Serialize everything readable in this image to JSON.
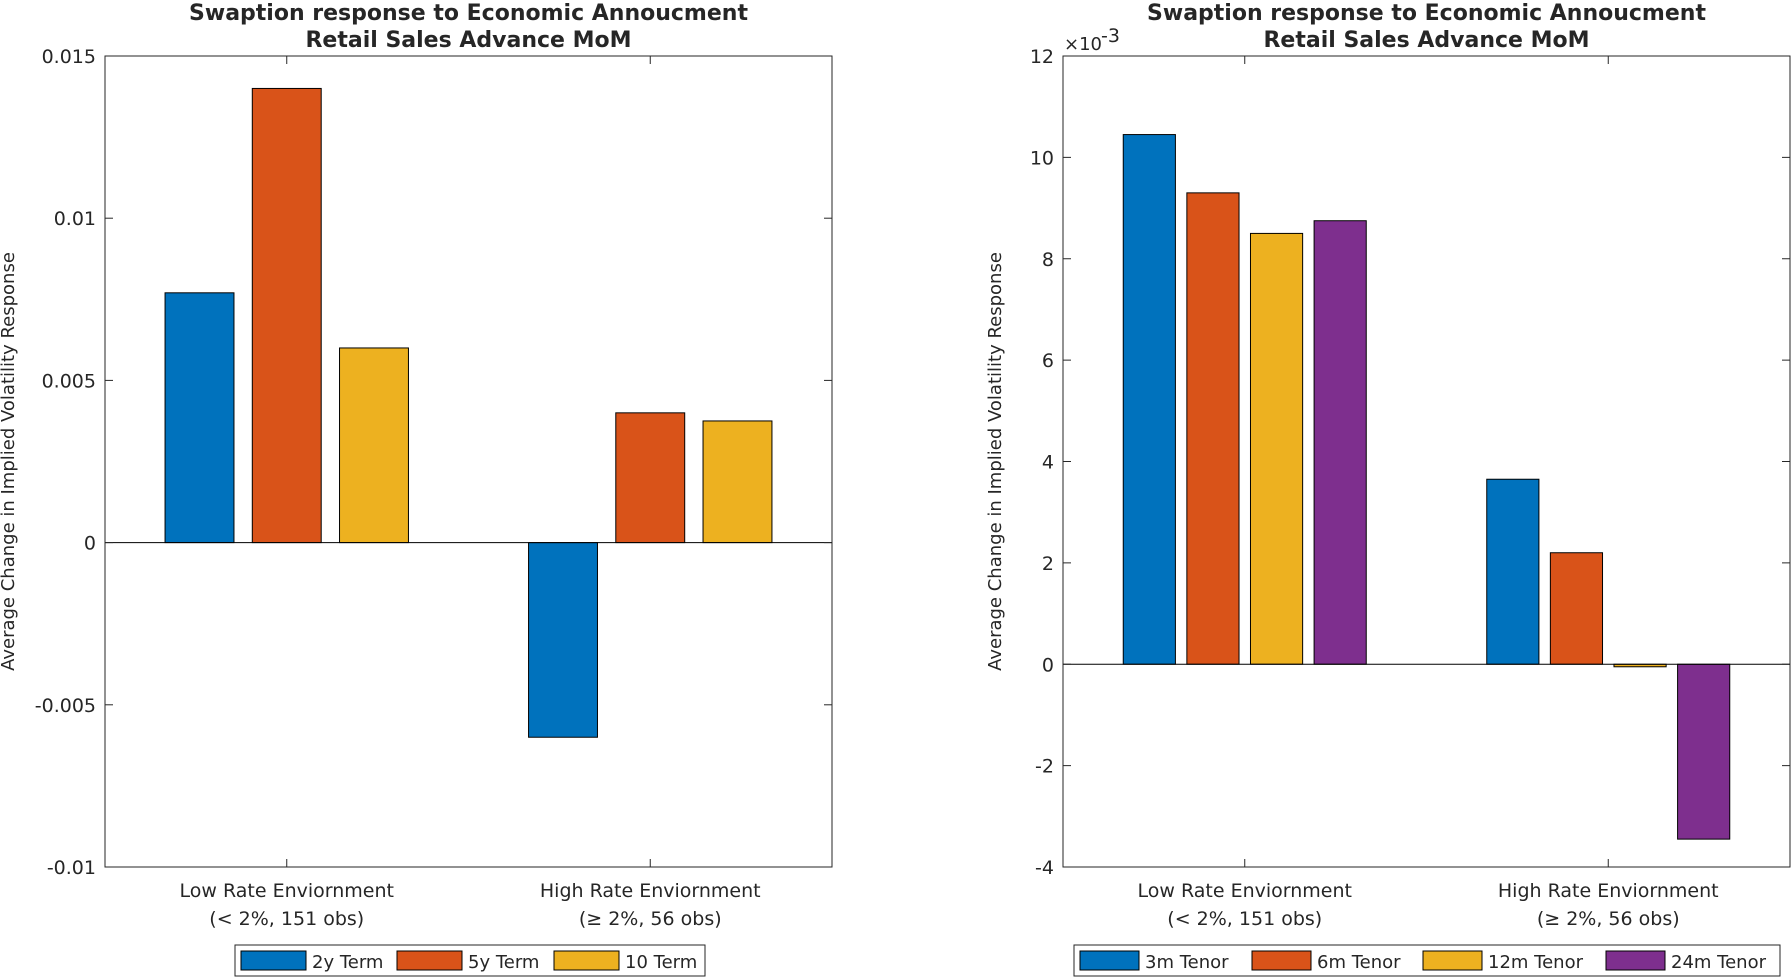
{
  "chart_data": [
    {
      "type": "bar",
      "title": [
        "Swaption response to Economic Annoucment",
        "Retail Sales Advance MoM"
      ],
      "ylabel": "Average Change in Implied Volatility Response",
      "ylim": [
        -0.01,
        0.015
      ],
      "yticks": [
        -0.01,
        -0.005,
        0,
        0.005,
        0.01,
        0.015
      ],
      "ytick_labels": [
        "-0.01",
        "-0.005",
        "0",
        "0.005",
        "0.01",
        "0.015"
      ],
      "categories": [
        [
          "Low Rate Enviornment",
          "(< 2%, 151 obs)"
        ],
        [
          "High Rate Enviornment",
          "(≥ 2%, 56 obs)"
        ]
      ],
      "series": [
        {
          "name": "2y Term",
          "color": "#0072BD",
          "values": [
            0.0077,
            -0.006
          ]
        },
        {
          "name": "5y Term",
          "color": "#D95319",
          "values": [
            0.014,
            0.004
          ]
        },
        {
          "name": "10 Term",
          "color": "#EDB120",
          "values": [
            0.006,
            0.00375
          ]
        }
      ],
      "legend": "bottom",
      "grid": false
    },
    {
      "type": "bar",
      "title": [
        "Swaption response to Economic Annoucment",
        "Retail Sales Advance MoM"
      ],
      "ylabel": "Average Change in Implied Volatility Response",
      "ylim": [
        -0.004,
        0.012
      ],
      "yticks": [
        -0.004,
        -0.002,
        0,
        0.002,
        0.004,
        0.006,
        0.008,
        0.01,
        0.012
      ],
      "ytick_labels": [
        "-4",
        "-2",
        "0",
        "2",
        "4",
        "6",
        "8",
        "10",
        "12"
      ],
      "y_exponent": "×10",
      "y_exponent_power": "-3",
      "categories": [
        [
          "Low Rate Enviornment",
          "(< 2%, 151 obs)"
        ],
        [
          "High Rate Enviornment",
          "(≥ 2%, 56 obs)"
        ]
      ],
      "series": [
        {
          "name": "3m Tenor",
          "color": "#0072BD",
          "values": [
            0.01045,
            0.00365
          ]
        },
        {
          "name": "6m Tenor",
          "color": "#D95319",
          "values": [
            0.0093,
            0.0022
          ]
        },
        {
          "name": "12m Tenor",
          "color": "#EDB120",
          "values": [
            0.0085,
            -5e-05
          ]
        },
        {
          "name": "24m Tenor",
          "color": "#7E2F8E",
          "values": [
            0.00875,
            -0.00345
          ]
        }
      ],
      "legend": "bottom",
      "grid": false
    }
  ]
}
